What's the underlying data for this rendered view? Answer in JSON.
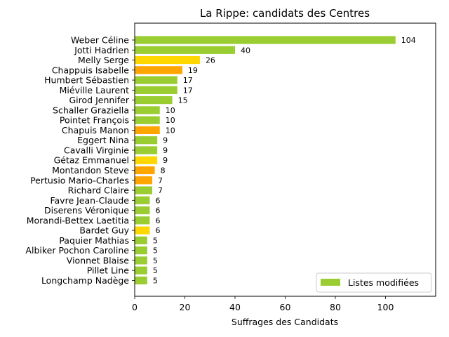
{
  "chart_data": {
    "type": "bar",
    "orientation": "horizontal",
    "title": "La Rippe: candidats des Centres",
    "xlabel": "Suffrages des Candidats",
    "ylabel": "",
    "xlim": [
      0,
      120
    ],
    "xticks": [
      0,
      20,
      40,
      60,
      80,
      100
    ],
    "grid": false,
    "legend": {
      "position": "bottom-right",
      "entries": [
        {
          "label": "Listes modifiées",
          "color": "#9ACD32"
        }
      ]
    },
    "colors": {
      "green": "#9ACD32",
      "gold": "#FFD700",
      "orange": "#FFA500"
    },
    "categories": [
      "Weber Céline",
      "Jotti Hadrien",
      "Melly Serge",
      "Chappuis Isabelle",
      "Humbert Sébastien",
      "Miéville Laurent",
      "Girod Jennifer",
      "Schaller Graziella",
      "Pointet François",
      "Chapuis Manon",
      "Eggert Nina",
      "Cavalli Virginie",
      "Gétaz Emmanuel",
      "Montandon Steve",
      "Pertusio Mario-Charles",
      "Richard Claire",
      "Favre Jean-Claude",
      "Diserens Véronique",
      "Morandi-Bettex Laetitia",
      "Bardet Guy",
      "Paquier Mathias",
      "Albiker Pochon Caroline",
      "Vionnet Blaise",
      "Pillet Line",
      "Longchamp Nadège"
    ],
    "values": [
      104,
      40,
      26,
      19,
      17,
      17,
      15,
      10,
      10,
      10,
      9,
      9,
      9,
      8,
      7,
      7,
      6,
      6,
      6,
      6,
      5,
      5,
      5,
      5,
      5
    ],
    "bar_colors": [
      "green",
      "green",
      "gold",
      "orange",
      "green",
      "green",
      "green",
      "green",
      "green",
      "orange",
      "green",
      "green",
      "gold",
      "orange",
      "orange",
      "green",
      "green",
      "green",
      "green",
      "gold",
      "green",
      "green",
      "green",
      "green",
      "green"
    ]
  }
}
